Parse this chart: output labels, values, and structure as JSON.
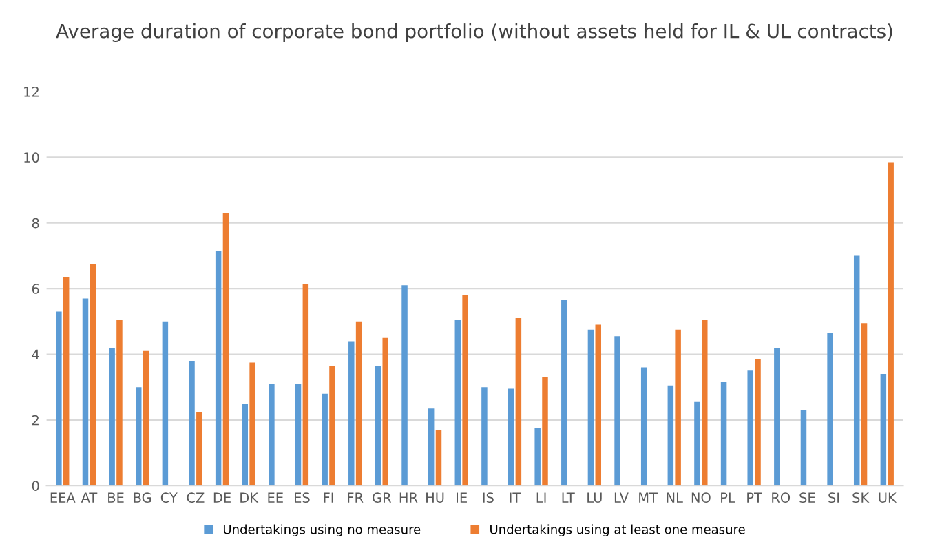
{
  "chart_data": {
    "type": "bar",
    "title": "Average duration of corporate bond portfolio (without assets held for IL & UL contracts)",
    "categories": [
      "EEA",
      "AT",
      "BE",
      "BG",
      "CY",
      "CZ",
      "DE",
      "DK",
      "EE",
      "ES",
      "FI",
      "FR",
      "GR",
      "HR",
      "HU",
      "IE",
      "IS",
      "IT",
      "LI",
      "LT",
      "LU",
      "LV",
      "MT",
      "NL",
      "NO",
      "PL",
      "PT",
      "RO",
      "SE",
      "SI",
      "SK",
      "UK"
    ],
    "series": [
      {
        "name": "Undertakings using no measure",
        "color": "#5b9bd5",
        "values": [
          5.3,
          5.7,
          4.2,
          3.0,
          5.0,
          3.8,
          7.15,
          2.5,
          3.1,
          3.1,
          2.8,
          4.4,
          3.65,
          6.1,
          2.35,
          5.05,
          3.0,
          2.95,
          1.75,
          5.65,
          4.75,
          4.55,
          3.6,
          3.05,
          2.55,
          3.15,
          3.5,
          4.2,
          2.3,
          4.65,
          7.0,
          3.4
        ]
      },
      {
        "name": "Undertakings using at least one measure",
        "color": "#ed7d31",
        "values": [
          6.35,
          6.75,
          5.05,
          4.1,
          null,
          2.25,
          8.3,
          3.75,
          null,
          6.15,
          3.65,
          5.0,
          4.5,
          null,
          1.7,
          5.8,
          null,
          5.1,
          3.3,
          null,
          4.9,
          null,
          null,
          4.75,
          5.05,
          null,
          3.85,
          null,
          null,
          null,
          4.95,
          9.85
        ]
      }
    ],
    "ylim": [
      0,
      12
    ],
    "yticks": [
      0,
      2,
      4,
      6,
      8,
      10,
      12
    ],
    "grid": "y",
    "legend": "bottom"
  }
}
